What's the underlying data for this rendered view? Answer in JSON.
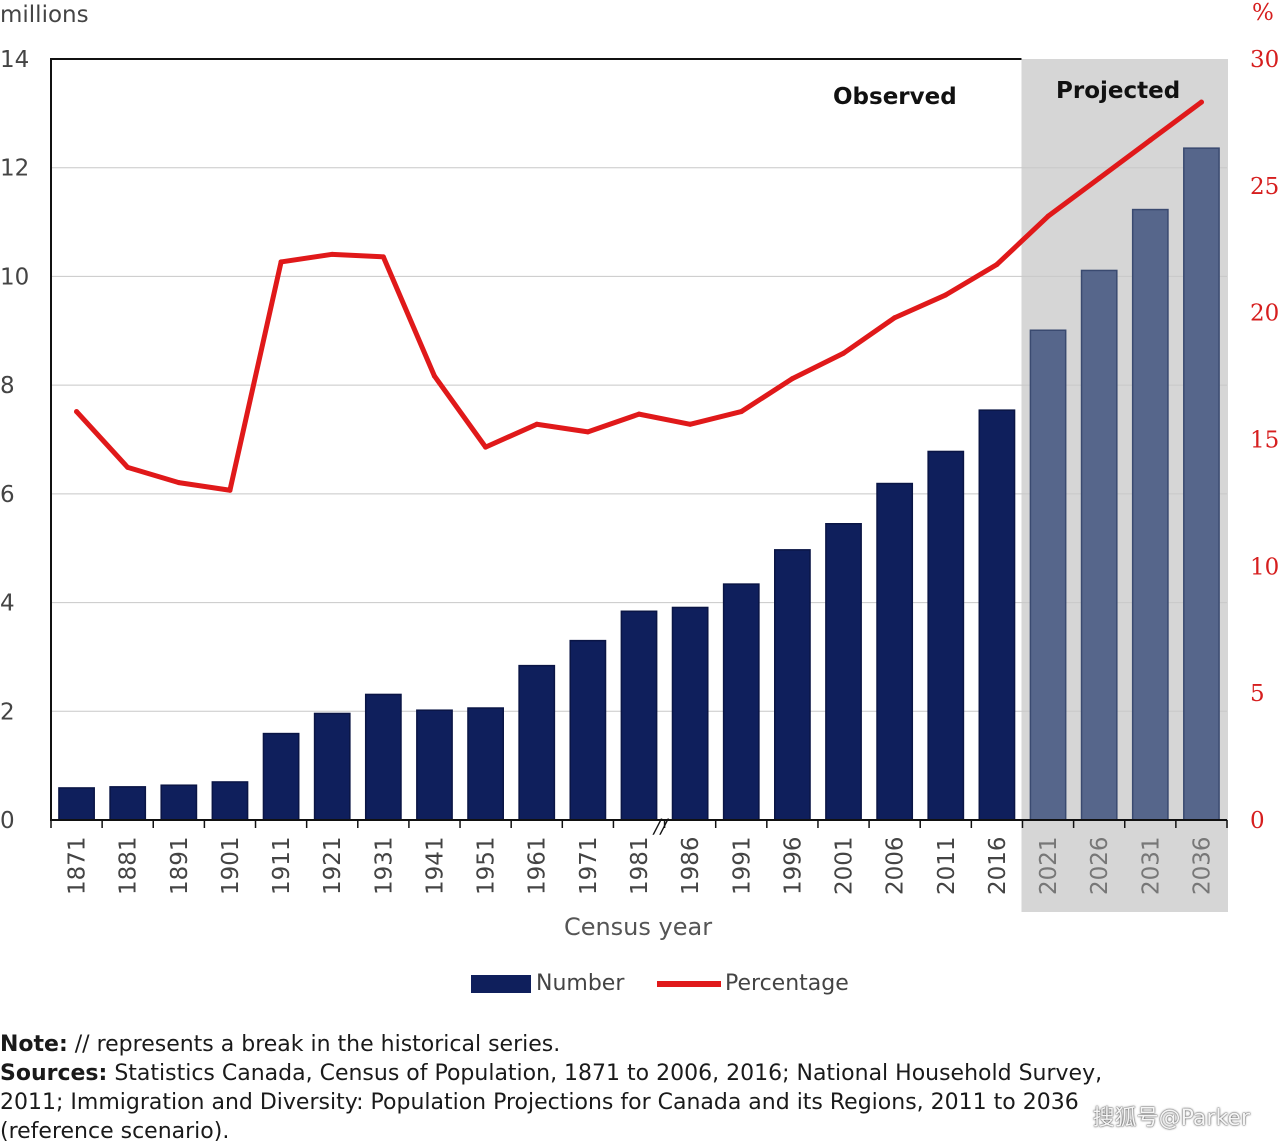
{
  "chart_data": {
    "type": "bar",
    "categories": [
      "1871",
      "1881",
      "1891",
      "1901",
      "1911",
      "1921",
      "1931",
      "1941",
      "1951",
      "1961",
      "1971",
      "1981",
      "1986",
      "1991",
      "1996",
      "2001",
      "2006",
      "2011",
      "2016",
      "2021",
      "2026",
      "2031",
      "2036"
    ],
    "series": [
      {
        "name": "Number",
        "axis": "left",
        "type": "bar",
        "values": [
          0.59,
          0.61,
          0.64,
          0.7,
          1.59,
          1.96,
          2.31,
          2.02,
          2.06,
          2.84,
          3.3,
          3.84,
          3.91,
          4.34,
          4.97,
          5.45,
          6.19,
          6.78,
          7.54,
          9.01,
          10.11,
          11.23,
          12.36
        ]
      },
      {
        "name": "Percentage",
        "axis": "right",
        "type": "line",
        "values": [
          16.1,
          13.9,
          13.3,
          13.0,
          22.0,
          22.3,
          22.2,
          17.5,
          14.7,
          15.6,
          15.3,
          16.0,
          15.6,
          16.1,
          17.4,
          18.4,
          19.8,
          20.7,
          21.9,
          23.8,
          25.3,
          26.8,
          28.3
        ]
      }
    ],
    "ylabel": "millions",
    "ylabel_right": "%",
    "xlabel": "Census year",
    "ylim": [
      0,
      14
    ],
    "ylim_right": [
      0,
      30
    ],
    "yticks": [
      "0",
      "2",
      "4",
      "6",
      "8",
      "10",
      "12",
      "14"
    ],
    "yticks_right": [
      "0",
      "5",
      "10",
      "15",
      "20",
      "25",
      "30"
    ],
    "annotations": {
      "observed": "Observed",
      "projected": "Projected",
      "break_marker": "//"
    },
    "projected_from": "2021",
    "grid": true,
    "legend_placement": "bottom-center",
    "colors": {
      "bar_observed": "#0f1f5c",
      "bar_projected": "#56668b",
      "line": "#e0191a",
      "projected_shade": "#d6d6d6"
    }
  },
  "notes": {
    "note_label": "Note:",
    "note_text": " // represents a break in the historical series.",
    "sources_label": "Sources:",
    "sources_line1": " Statistics Canada, Census of Population, 1871 to 2006, 2016; National Household Survey,",
    "sources_line2": "2011; Immigration and Diversity: Population Projections for Canada and its Regions, 2011 to 2036",
    "sources_line3": "(reference scenario)."
  },
  "watermark": "搜狐号@Parker"
}
